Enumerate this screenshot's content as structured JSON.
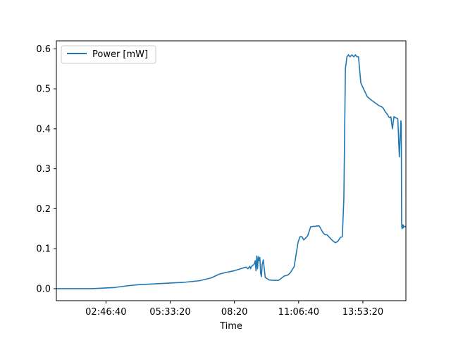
{
  "chart_data": {
    "type": "line",
    "title": "",
    "xlabel": "Time",
    "ylabel": "",
    "xlim": [
      "00:38:00",
      "15:45:00"
    ],
    "ylim": [
      -0.03,
      0.62
    ],
    "x_ticks": [
      "02:46:40",
      "05:33:20",
      "08:20",
      "11:06:40",
      "13:53:20"
    ],
    "y_ticks": [
      "0.0",
      "0.1",
      "0.2",
      "0.3",
      "0.4",
      "0.5",
      "0.6"
    ],
    "grid": false,
    "legend": {
      "position": "top-left"
    },
    "series": [
      {
        "name": "Power [mW]",
        "color": "#1f77b4",
        "x": [
          "00:38:00",
          "02:10:00",
          "03:10:00",
          "03:40:00",
          "04:10:00",
          "04:50:00",
          "05:30:00",
          "06:10:00",
          "06:50:00",
          "07:20:00",
          "07:40:00",
          "07:55:00",
          "08:10:00",
          "08:20:00",
          "08:30:00",
          "08:40:00",
          "08:50:00",
          "08:55:00",
          "09:00:00",
          "09:02:00",
          "09:04:00",
          "09:07:00",
          "09:10:00",
          "09:12:00",
          "09:14:00",
          "09:16:00",
          "09:18:00",
          "09:20:00",
          "09:22:00",
          "09:24:00",
          "09:26:00",
          "09:28:00",
          "09:30:00",
          "09:32:00",
          "09:35:00",
          "09:40:00",
          "09:50:00",
          "10:00:00",
          "10:10:00",
          "10:15:00",
          "10:30:00",
          "10:35:00",
          "10:40:00",
          "10:45:00",
          "10:55:00",
          "11:00:00",
          "11:05:00",
          "11:10:00",
          "11:15:00",
          "11:20:00",
          "11:30:00",
          "11:38:00",
          "11:45:00",
          "11:50:00",
          "11:55:00",
          "12:00:00",
          "12:10:00",
          "12:15:00",
          "12:20:00",
          "12:25:00",
          "12:35:00",
          "12:42:00",
          "12:48:00",
          "12:55:00",
          "13:00:00",
          "13:04:00",
          "13:08:00",
          "13:12:00",
          "13:16:00",
          "13:20:00",
          "13:25:00",
          "13:30:00",
          "13:34:00",
          "13:38:00",
          "13:42:00",
          "13:48:00",
          "13:55:00",
          "14:05:00",
          "14:15:00",
          "14:25:00",
          "14:35:00",
          "14:42:00",
          "14:46:00",
          "14:50:00",
          "14:52:00",
          "14:54:00",
          "14:56:00",
          "14:58:00",
          "15:00:00",
          "15:03:00",
          "15:06:00",
          "15:10:00",
          "15:14:00",
          "15:18:00",
          "15:24:00",
          "15:28:00",
          "15:32:00",
          "15:33:00",
          "15:34:00",
          "15:35:00",
          "15:36:00",
          "15:37:00",
          "15:38:00",
          "15:39:00",
          "15:40:00",
          "15:41:00",
          "15:43:00",
          "15:45:00"
        ],
        "values": [
          0.0,
          0.0,
          0.003,
          0.007,
          0.01,
          0.012,
          0.014,
          0.016,
          0.02,
          0.027,
          0.036,
          0.04,
          0.043,
          0.045,
          0.048,
          0.051,
          0.054,
          0.05,
          0.056,
          0.05,
          0.055,
          0.058,
          0.06,
          0.063,
          0.07,
          0.045,
          0.082,
          0.05,
          0.08,
          0.07,
          0.078,
          0.04,
          0.03,
          0.06,
          0.072,
          0.028,
          0.022,
          0.021,
          0.021,
          0.021,
          0.032,
          0.033,
          0.035,
          0.04,
          0.055,
          0.085,
          0.115,
          0.13,
          0.13,
          0.122,
          0.132,
          0.155,
          0.156,
          0.156,
          0.157,
          0.157,
          0.14,
          0.135,
          0.135,
          0.13,
          0.12,
          0.115,
          0.118,
          0.128,
          0.13,
          0.225,
          0.55,
          0.58,
          0.585,
          0.58,
          0.585,
          0.58,
          0.585,
          0.58,
          0.58,
          0.515,
          0.5,
          0.48,
          0.472,
          0.465,
          0.458,
          0.455,
          0.452,
          0.445,
          0.442,
          0.44,
          0.437,
          0.435,
          0.43,
          0.428,
          0.43,
          0.4,
          0.43,
          0.428,
          0.425,
          0.33,
          0.42,
          0.41,
          0.16,
          0.15,
          0.155,
          0.16,
          0.152,
          0.158,
          0.155,
          0.155,
          0.155,
          0.155
        ]
      }
    ]
  }
}
